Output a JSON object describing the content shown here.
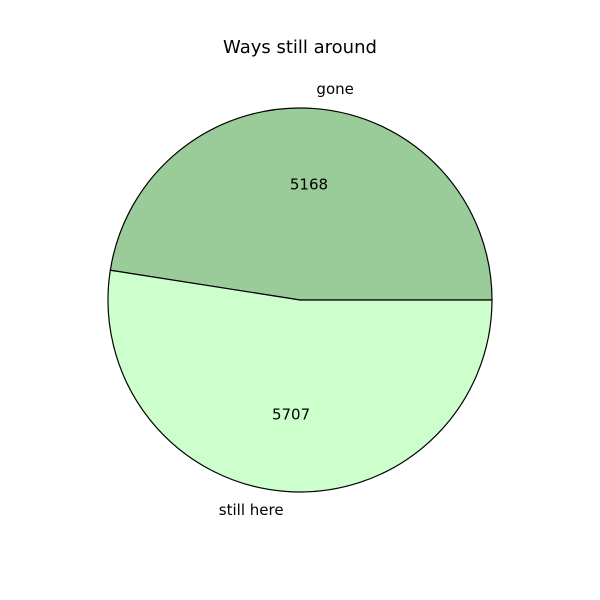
{
  "chart_data": {
    "type": "pie",
    "title": "Ways still around",
    "slices": [
      {
        "label": "gone",
        "value": 5168,
        "value_label": "5168",
        "color": "#99cc99"
      },
      {
        "label": "still here",
        "value": 5707,
        "value_label": "5707",
        "color": "#ccffcc"
      }
    ],
    "start_angle_deg": 0,
    "direction": "counterclockwise",
    "edge_color": "#000000"
  }
}
